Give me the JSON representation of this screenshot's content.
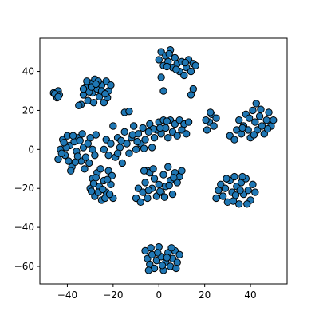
{
  "chart_data": {
    "type": "scatter",
    "title": "",
    "xlabel": "",
    "ylabel": "",
    "xlim": [
      -52,
      56
    ],
    "ylim": [
      -69,
      57
    ],
    "x_ticks": [
      -40,
      -20,
      0,
      20,
      40
    ],
    "y_ticks": [
      -60,
      -40,
      -20,
      0,
      20,
      40
    ],
    "x_tick_labels": [
      "−40",
      "−20",
      "0",
      "20",
      "40"
    ],
    "y_tick_labels": [
      "−60",
      "−40",
      "−20",
      "0",
      "20",
      "40"
    ],
    "grid": false,
    "legend": "none",
    "marker_fill": "#1f77b4",
    "marker_edge": "#000000",
    "series": [
      {
        "values": [
          [
            -46.0,
            29.0
          ],
          [
            -45.0,
            27.5
          ],
          [
            -44.0,
            30.0
          ],
          [
            -44.5,
            26.5
          ],
          [
            -43.5,
            28.0
          ],
          [
            -45.5,
            28.5
          ],
          [
            -44.0,
            27.0
          ],
          [
            -34.0,
            23.0
          ],
          [
            -33.0,
            28.0
          ],
          [
            -32.0,
            32.0
          ],
          [
            -31.0,
            25.0
          ],
          [
            -30.0,
            34.0
          ],
          [
            -29.0,
            29.0
          ],
          [
            -28.0,
            36.0
          ],
          [
            -27.0,
            31.0
          ],
          [
            -26.0,
            27.0
          ],
          [
            -25.0,
            33.0
          ],
          [
            -24.0,
            24.0
          ],
          [
            -23.0,
            35.0
          ],
          [
            -22.0,
            30.0
          ],
          [
            -21.0,
            33.0
          ],
          [
            -22.5,
            26.5
          ],
          [
            -28.5,
            24.0
          ],
          [
            -30.5,
            29.5
          ],
          [
            -26.5,
            35.0
          ],
          [
            -33.0,
            31.0
          ],
          [
            -25.0,
            30.0
          ],
          [
            -29.5,
            32.0
          ],
          [
            -31.5,
            35.0
          ],
          [
            -27.5,
            33.5
          ],
          [
            -35.0,
            22.5
          ],
          [
            -23.5,
            28.5
          ],
          [
            -44.0,
            -5.0
          ],
          [
            -43.0,
            0.0
          ],
          [
            -42.0,
            5.0
          ],
          [
            -41.0,
            -3.0
          ],
          [
            -40.0,
            7.0
          ],
          [
            -39.0,
            2.0
          ],
          [
            -38.0,
            -9.0
          ],
          [
            -37.0,
            4.0
          ],
          [
            -36.0,
            -1.0
          ],
          [
            -35.0,
            6.0
          ],
          [
            -34.0,
            -6.0
          ],
          [
            -33.0,
            1.0
          ],
          [
            -32.0,
            -4.0
          ],
          [
            -31.0,
            3.0
          ],
          [
            -30.0,
            6.0
          ],
          [
            -29.0,
            0.0
          ],
          [
            -28.0,
            -3.0
          ],
          [
            -27.5,
            7.5
          ],
          [
            -32.5,
            -10.0
          ],
          [
            -38.5,
            -11.0
          ],
          [
            -40.5,
            1.0
          ],
          [
            -36.5,
            -6.5
          ],
          [
            -42.5,
            -2.0
          ],
          [
            -34.5,
            4.5
          ],
          [
            -30.5,
            -7.0
          ],
          [
            -37.5,
            7.0
          ],
          [
            -35.5,
            -3.5
          ],
          [
            -39.5,
            -6.0
          ],
          [
            -33.5,
            8.0
          ],
          [
            -41.5,
            3.5
          ],
          [
            -30.0,
            -20.0
          ],
          [
            -29.0,
            -15.0
          ],
          [
            -28.0,
            -24.0
          ],
          [
            -27.0,
            -12.0
          ],
          [
            -26.0,
            -19.0
          ],
          [
            -25.0,
            -26.0
          ],
          [
            -24.0,
            -16.0
          ],
          [
            -23.0,
            -22.0
          ],
          [
            -22.0,
            -11.0
          ],
          [
            -21.0,
            -18.0
          ],
          [
            -20.0,
            -25.0
          ],
          [
            -20.5,
            -13.5
          ],
          [
            -26.5,
            -22.0
          ],
          [
            -28.5,
            -17.5
          ],
          [
            -23.5,
            -25.0
          ],
          [
            -24.5,
            -20.5
          ],
          [
            -21.5,
            -23.0
          ],
          [
            -27.5,
            -14.5
          ],
          [
            -25.5,
            -10.0
          ],
          [
            -29.5,
            -21.5
          ],
          [
            -22.5,
            -15.5
          ],
          [
            -24.0,
            0.0
          ],
          [
            -23.0,
            5.0
          ],
          [
            -22.0,
            -3.0
          ],
          [
            -21.0,
            3.0
          ],
          [
            -20.0,
            12.0
          ],
          [
            -19.0,
            -4.0
          ],
          [
            -18.0,
            6.0
          ],
          [
            -17.0,
            1.0
          ],
          [
            -16.0,
            -7.0
          ],
          [
            -15.0,
            9.0
          ],
          [
            -14.0,
            3.0
          ],
          [
            -13.0,
            -2.0
          ],
          [
            -12.0,
            6.0
          ],
          [
            -11.0,
            12.0
          ],
          [
            -10.0,
            0.0
          ],
          [
            -9.0,
            8.0
          ],
          [
            -8.0,
            3.0
          ],
          [
            -7.0,
            11.0
          ],
          [
            -6.0,
            5.0
          ],
          [
            -5.0,
            -11.0
          ],
          [
            -4.0,
            13.0
          ],
          [
            -3.0,
            1.0
          ],
          [
            -2.0,
            6.0
          ],
          [
            -1.0,
            10.0
          ],
          [
            0.0,
            14.0
          ],
          [
            1.0,
            8.0
          ],
          [
            2.0,
            15.0
          ],
          [
            3.0,
            11.0
          ],
          [
            4.0,
            6.0
          ],
          [
            5.0,
            15.0
          ],
          [
            6.0,
            9.0
          ],
          [
            7.0,
            13.0
          ],
          [
            8.0,
            7.0
          ],
          [
            9.0,
            15.0
          ],
          [
            10.0,
            10.0
          ],
          [
            11.0,
            13.0
          ],
          [
            12.0,
            8.0
          ],
          [
            13.0,
            14.0
          ],
          [
            -15.0,
            19.0
          ],
          [
            -13.0,
            19.5
          ],
          [
            -18.0,
            -2.0
          ],
          [
            -9.5,
            4.0
          ],
          [
            -6.5,
            0.5
          ],
          [
            -2.5,
            10.5
          ],
          [
            3.5,
            14.5
          ],
          [
            -16.5,
            4.5
          ],
          [
            -11.5,
            7.5
          ],
          [
            -4.5,
            9.0
          ],
          [
            0.5,
            11.0
          ],
          [
            21.0,
            10.0
          ],
          [
            22.0,
            14.0
          ],
          [
            23.0,
            18.0
          ],
          [
            24.0,
            12.0
          ],
          [
            25.0,
            16.0
          ],
          [
            22.5,
            19.0
          ],
          [
            20.5,
            15.0
          ],
          [
            31.0,
            7.0
          ],
          [
            33.0,
            5.0
          ],
          [
            34.0,
            10.0
          ],
          [
            35.0,
            15.0
          ],
          [
            36.0,
            8.0
          ],
          [
            37.0,
            12.0
          ],
          [
            38.0,
            18.0
          ],
          [
            39.0,
            10.0
          ],
          [
            40.0,
            6.0
          ],
          [
            41.0,
            20.0
          ],
          [
            42.0,
            14.0
          ],
          [
            43.0,
            10.0
          ],
          [
            44.0,
            17.0
          ],
          [
            45.0,
            12.0
          ],
          [
            46.0,
            8.0
          ],
          [
            47.0,
            15.0
          ],
          [
            48.0,
            19.0
          ],
          [
            49.0,
            12.0
          ],
          [
            50.0,
            15.0
          ],
          [
            42.5,
            23.5
          ],
          [
            39.5,
            16.0
          ],
          [
            44.5,
            20.5
          ],
          [
            36.5,
            11.0
          ],
          [
            41.5,
            7.5
          ],
          [
            47.5,
            10.5
          ],
          [
            0.0,
            46.0
          ],
          [
            1.0,
            50.0
          ],
          [
            2.0,
            43.0
          ],
          [
            3.0,
            48.0
          ],
          [
            4.0,
            45.0
          ],
          [
            5.0,
            51.0
          ],
          [
            6.0,
            42.0
          ],
          [
            7.0,
            47.0
          ],
          [
            8.0,
            44.0
          ],
          [
            9.0,
            40.0
          ],
          [
            10.0,
            45.0
          ],
          [
            11.0,
            38.0
          ],
          [
            12.0,
            42.0
          ],
          [
            13.0,
            46.0
          ],
          [
            14.0,
            40.0
          ],
          [
            15.0,
            44.0
          ],
          [
            16.0,
            43.0
          ],
          [
            15.0,
            31.0
          ],
          [
            14.0,
            28.0
          ],
          [
            1.0,
            37.0
          ],
          [
            2.0,
            30.0
          ],
          [
            4.5,
            49.0
          ],
          [
            7.5,
            41.0
          ],
          [
            11.5,
            44.5
          ],
          [
            3.5,
            42.5
          ],
          [
            -10.0,
            -25.0
          ],
          [
            -9.0,
            -20.0
          ],
          [
            -8.0,
            -27.0
          ],
          [
            -7.0,
            -22.0
          ],
          [
            -6.0,
            -17.0
          ],
          [
            -5.0,
            -25.0
          ],
          [
            -4.0,
            -12.0
          ],
          [
            -3.0,
            -20.0
          ],
          [
            -2.0,
            -15.0
          ],
          [
            -1.0,
            -24.0
          ],
          [
            0.0,
            -18.0
          ],
          [
            1.0,
            -22.0
          ],
          [
            2.0,
            -13.0
          ],
          [
            3.0,
            -19.0
          ],
          [
            4.0,
            -9.0
          ],
          [
            5.0,
            -16.0
          ],
          [
            6.0,
            -23.0
          ],
          [
            7.0,
            -12.0
          ],
          [
            8.0,
            -17.0
          ],
          [
            9.0,
            -14.0
          ],
          [
            10.0,
            -11.0
          ],
          [
            -6.5,
            -11.0
          ],
          [
            -2.5,
            -10.0
          ],
          [
            0.5,
            -21.5
          ],
          [
            4.5,
            -18.5
          ],
          [
            -4.5,
            -21.0
          ],
          [
            2.5,
            -24.5
          ],
          [
            6.5,
            -14.5
          ],
          [
            25.0,
            -25.0
          ],
          [
            26.0,
            -21.0
          ],
          [
            27.0,
            -18.0
          ],
          [
            28.0,
            -24.0
          ],
          [
            29.0,
            -20.0
          ],
          [
            30.0,
            -27.0
          ],
          [
            31.0,
            -16.0
          ],
          [
            32.0,
            -22.0
          ],
          [
            33.0,
            -14.0
          ],
          [
            34.0,
            -19.0
          ],
          [
            35.0,
            -28.0
          ],
          [
            36.0,
            -17.0
          ],
          [
            37.0,
            -23.0
          ],
          [
            38.0,
            -15.0
          ],
          [
            39.0,
            -21.0
          ],
          [
            40.0,
            -26.0
          ],
          [
            41.0,
            -18.0
          ],
          [
            42.0,
            -22.0
          ],
          [
            38.5,
            -28.0
          ],
          [
            32.5,
            -26.5
          ],
          [
            35.5,
            -21.0
          ],
          [
            29.5,
            -15.0
          ],
          [
            36.5,
            -14.0
          ],
          [
            33.5,
            -23.5
          ],
          [
            -6.0,
            -52.0
          ],
          [
            -5.0,
            -56.0
          ],
          [
            -4.0,
            -59.0
          ],
          [
            -3.0,
            -54.0
          ],
          [
            -2.0,
            -61.0
          ],
          [
            -1.0,
            -57.0
          ],
          [
            0.0,
            -50.0
          ],
          [
            1.0,
            -55.0
          ],
          [
            2.0,
            -62.0
          ],
          [
            3.0,
            -58.0
          ],
          [
            4.0,
            -53.0
          ],
          [
            5.0,
            -60.0
          ],
          [
            6.0,
            -56.0
          ],
          [
            7.0,
            -52.0
          ],
          [
            8.0,
            -58.0
          ],
          [
            9.0,
            -54.0
          ],
          [
            -3.5,
            -50.5
          ],
          [
            1.5,
            -59.5
          ],
          [
            5.5,
            -50.5
          ],
          [
            -0.5,
            -53.0
          ],
          [
            3.5,
            -55.5
          ],
          [
            7.5,
            -61.0
          ],
          [
            -4.5,
            -62.0
          ]
        ]
      }
    ]
  }
}
